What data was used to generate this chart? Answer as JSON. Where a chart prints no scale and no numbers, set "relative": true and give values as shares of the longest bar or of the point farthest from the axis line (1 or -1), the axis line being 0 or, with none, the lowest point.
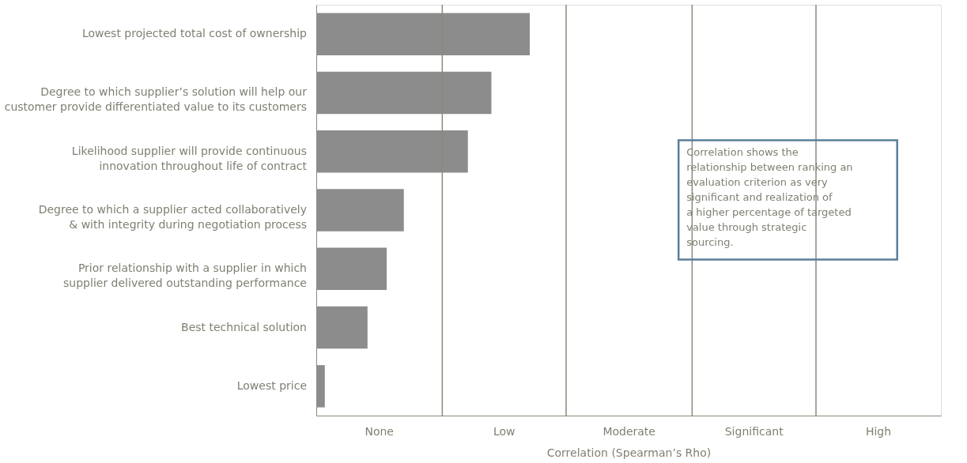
{
  "chart_data": {
    "type": "bar",
    "orientation": "horizontal",
    "relative": true,
    "categories": [
      "Lowest projected total cost of ownership",
      "Degree to which supplier’s solution will help our customer provide differentiated value to its customers",
      "Likelihood supplier will provide continuous innovation throughout life of contract",
      "Degree to which a supplier acted collaboratively & with integrity during negotiation process",
      "Prior relationship with a supplier in which supplier delivered outstanding performance",
      "Best technical solution",
      "Lowest price"
    ],
    "values": [
      1,
      0.82,
      0.71,
      0.41,
      0.33,
      0.24,
      0.04
    ],
    "color": "#8c8c8c",
    "xlabel": "Correlation (Spearman’s Rho)",
    "ref_lines": [
      {
        "axis": "x",
        "value": 0.59,
        "color": "#8a8a7a"
      },
      {
        "axis": "x",
        "value": 1.17,
        "color": "#8a8a7a"
      },
      {
        "axis": "x",
        "value": 1.76,
        "color": "#8a8a7a"
      },
      {
        "axis": "x",
        "value": 2.34,
        "color": "#8a8a7a"
      }
    ],
    "annotations": [
      "None",
      "Low",
      "Moderate",
      "Significant",
      "High",
      "Correlation shows the relationship between ranking an evaluation criterion as very significant and realization of a higher percentage of targeted value through strategic sourcing."
    ],
    "grid": false
  }
}
